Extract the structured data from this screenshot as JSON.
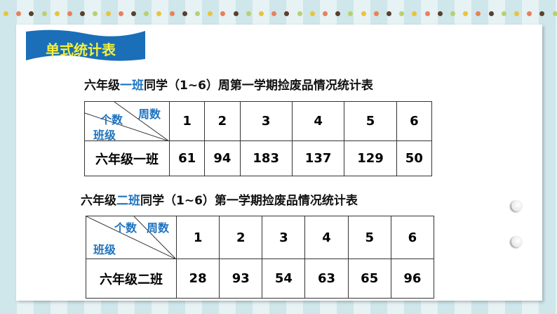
{
  "banner": {
    "title": "单式统计表",
    "color": "#1a6fb8",
    "text_color": "#f5f03a"
  },
  "table1": {
    "title_pre": "六年级",
    "title_hl": "一班",
    "title_post": "同学（1~6）周第一学期捡废品情况统计表",
    "corner": {
      "col": "周数",
      "val": "个数",
      "row": "班级"
    },
    "headers": [
      "1",
      "2",
      "3",
      "4",
      "5",
      "6"
    ],
    "row_label": "六年级一班",
    "values": [
      "61",
      "94",
      "183",
      "137",
      "129",
      "50"
    ]
  },
  "table2": {
    "title_pre": "六年级",
    "title_hl": "二班",
    "title_post": "同学（1~6）第一学期捡废品情况统计表",
    "corner": {
      "col": "周数",
      "val": "个数",
      "row": "班级"
    },
    "headers": [
      "1",
      "2",
      "3",
      "4",
      "5",
      "6"
    ],
    "row_label": "六年级二班",
    "values": [
      "28",
      "93",
      "54",
      "63",
      "65",
      "96"
    ]
  },
  "colors": {
    "highlight": "#1e73be"
  }
}
